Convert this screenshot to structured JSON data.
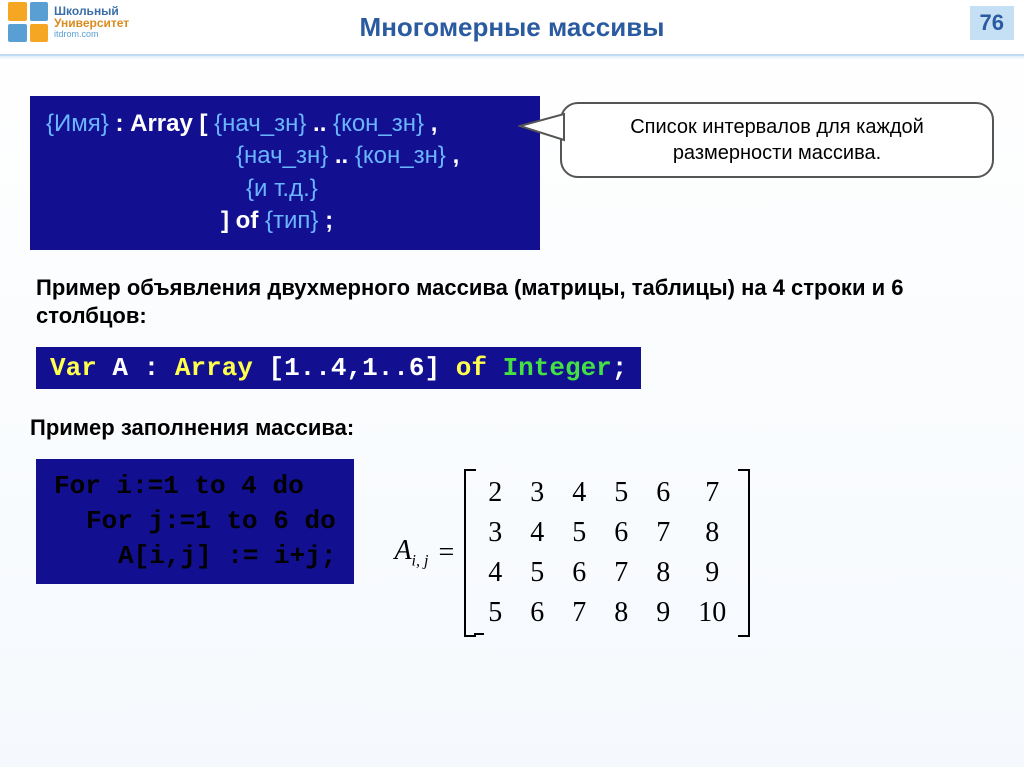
{
  "header": {
    "logo_line1": "Школьный",
    "logo_line2": "Университет",
    "logo_line3": "itdrom.com",
    "title": "Многомерные массивы",
    "page_number": "76"
  },
  "syntax": {
    "line1_pre": "{Имя}",
    "line1_mid": " : Array [ ",
    "line1_a": "{нач_зн}",
    "line1_dots": " .. ",
    "line1_b": "{кон_зн}",
    "line1_comma": " ,",
    "line2_a": "{нач_зн}",
    "line2_dots": " .. ",
    "line2_b": "{кон_зн}",
    "line2_comma": " ,",
    "line3": "{и т.д.}",
    "line4_close": "] of ",
    "line4_type": "{тип}",
    "line4_semi": " ;"
  },
  "callout": {
    "text": "Список интервалов для каждой размерности массива."
  },
  "example1_intro": "Пример объявления двухмерного массива (матрицы, таблицы) на 4 строки и 6 столбцов:",
  "code1": {
    "var": "Var",
    "sp1": " ",
    "id": "A",
    "colon": " : ",
    "array": "Array",
    "br_open": " [",
    "range": "1..4,1..6",
    "br_close": "] ",
    "of": "of",
    "sp2": " ",
    "type": "Integer",
    "semi": ";"
  },
  "example2_intro": "Пример заполнения массива:",
  "code2": {
    "l1_for": "For",
    "l1_rest": " i:=1 ",
    "l1_to": "to",
    "l1_n": " 4 ",
    "l1_do": "do",
    "l2_for": "For",
    "l2_rest": " j:=1 ",
    "l2_to": "to",
    "l2_n": " 6 ",
    "l2_do": "do",
    "l3": "A[i,j] := i+j;"
  },
  "matrix": {
    "label": "A",
    "sub": "i, j",
    "eq": "=",
    "rows": [
      [
        "2",
        "3",
        "4",
        "5",
        "6",
        "7"
      ],
      [
        "3",
        "4",
        "5",
        "6",
        "7",
        "8"
      ],
      [
        "4",
        "5",
        "6",
        "7",
        "8",
        "9"
      ],
      [
        "5",
        "6",
        "7",
        "8",
        "9",
        "10"
      ]
    ]
  },
  "colors": {
    "title": "#2a5aa0",
    "codebox_bg": "#121090",
    "curly": "#6bb5ff",
    "keyword_yellow": "#ffff4d",
    "type_green": "#44e044"
  }
}
